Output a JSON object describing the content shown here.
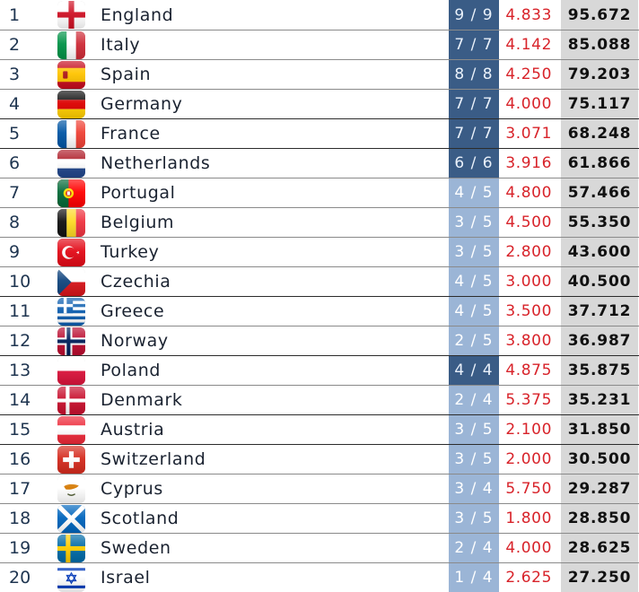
{
  "rows": [
    {
      "rank": "1",
      "country": "England",
      "flag": "england-flag-icon",
      "ratio": "9 / 9",
      "full": true,
      "avg": "4.833",
      "total": "95.672"
    },
    {
      "rank": "2",
      "country": "Italy",
      "flag": "italy-flag-icon",
      "ratio": "7 / 7",
      "full": true,
      "avg": "4.142",
      "total": "85.088"
    },
    {
      "rank": "3",
      "country": "Spain",
      "flag": "spain-flag-icon",
      "ratio": "8 / 8",
      "full": true,
      "avg": "4.250",
      "total": "79.203"
    },
    {
      "rank": "4",
      "country": "Germany",
      "flag": "germany-flag-icon",
      "ratio": "7 / 7",
      "full": true,
      "avg": "4.000",
      "total": "75.117"
    },
    {
      "rank": "5",
      "country": "France",
      "flag": "france-flag-icon",
      "ratio": "7 / 7",
      "full": true,
      "avg": "3.071",
      "total": "68.248"
    },
    {
      "rank": "6",
      "country": "Netherlands",
      "flag": "netherlands-flag-icon",
      "ratio": "6 / 6",
      "full": true,
      "avg": "3.916",
      "total": "61.866"
    },
    {
      "rank": "7",
      "country": "Portugal",
      "flag": "portugal-flag-icon",
      "ratio": "4 / 5",
      "full": false,
      "avg": "4.800",
      "total": "57.466"
    },
    {
      "rank": "8",
      "country": "Belgium",
      "flag": "belgium-flag-icon",
      "ratio": "3 / 5",
      "full": false,
      "avg": "4.500",
      "total": "55.350"
    },
    {
      "rank": "9",
      "country": "Turkey",
      "flag": "turkey-flag-icon",
      "ratio": "3 / 5",
      "full": false,
      "avg": "2.800",
      "total": "43.600"
    },
    {
      "rank": "10",
      "country": "Czechia",
      "flag": "czechia-flag-icon",
      "ratio": "4 / 5",
      "full": false,
      "avg": "3.000",
      "total": "40.500"
    },
    {
      "rank": "11",
      "country": "Greece",
      "flag": "greece-flag-icon",
      "ratio": "4 / 5",
      "full": false,
      "avg": "3.500",
      "total": "37.712"
    },
    {
      "rank": "12",
      "country": "Norway",
      "flag": "norway-flag-icon",
      "ratio": "2 / 5",
      "full": false,
      "avg": "3.800",
      "total": "36.987"
    },
    {
      "rank": "13",
      "country": "Poland",
      "flag": "poland-flag-icon",
      "ratio": "4 / 4",
      "full": true,
      "avg": "4.875",
      "total": "35.875"
    },
    {
      "rank": "14",
      "country": "Denmark",
      "flag": "denmark-flag-icon",
      "ratio": "2 / 4",
      "full": false,
      "avg": "5.375",
      "total": "35.231"
    },
    {
      "rank": "15",
      "country": "Austria",
      "flag": "austria-flag-icon",
      "ratio": "3 / 5",
      "full": false,
      "avg": "2.100",
      "total": "31.850"
    },
    {
      "rank": "16",
      "country": "Switzerland",
      "flag": "switzerland-flag-icon",
      "ratio": "3 / 5",
      "full": false,
      "avg": "2.000",
      "total": "30.500"
    },
    {
      "rank": "17",
      "country": "Cyprus",
      "flag": "cyprus-flag-icon",
      "ratio": "3 / 4",
      "full": false,
      "avg": "5.750",
      "total": "29.287"
    },
    {
      "rank": "18",
      "country": "Scotland",
      "flag": "scotland-flag-icon",
      "ratio": "3 / 5",
      "full": false,
      "avg": "1.800",
      "total": "28.850"
    },
    {
      "rank": "19",
      "country": "Sweden",
      "flag": "sweden-flag-icon",
      "ratio": "2 / 4",
      "full": false,
      "avg": "4.000",
      "total": "28.625"
    },
    {
      "rank": "20",
      "country": "Israel",
      "flag": "israel-flag-icon",
      "ratio": "1 / 4",
      "full": false,
      "avg": "2.625",
      "total": "27.250"
    }
  ],
  "colors": {
    "ratio_full": "#3a5c86",
    "ratio_partial": "#9bb5d6",
    "avg_text": "#d8232a",
    "total_bg": "#d8d8d8"
  }
}
